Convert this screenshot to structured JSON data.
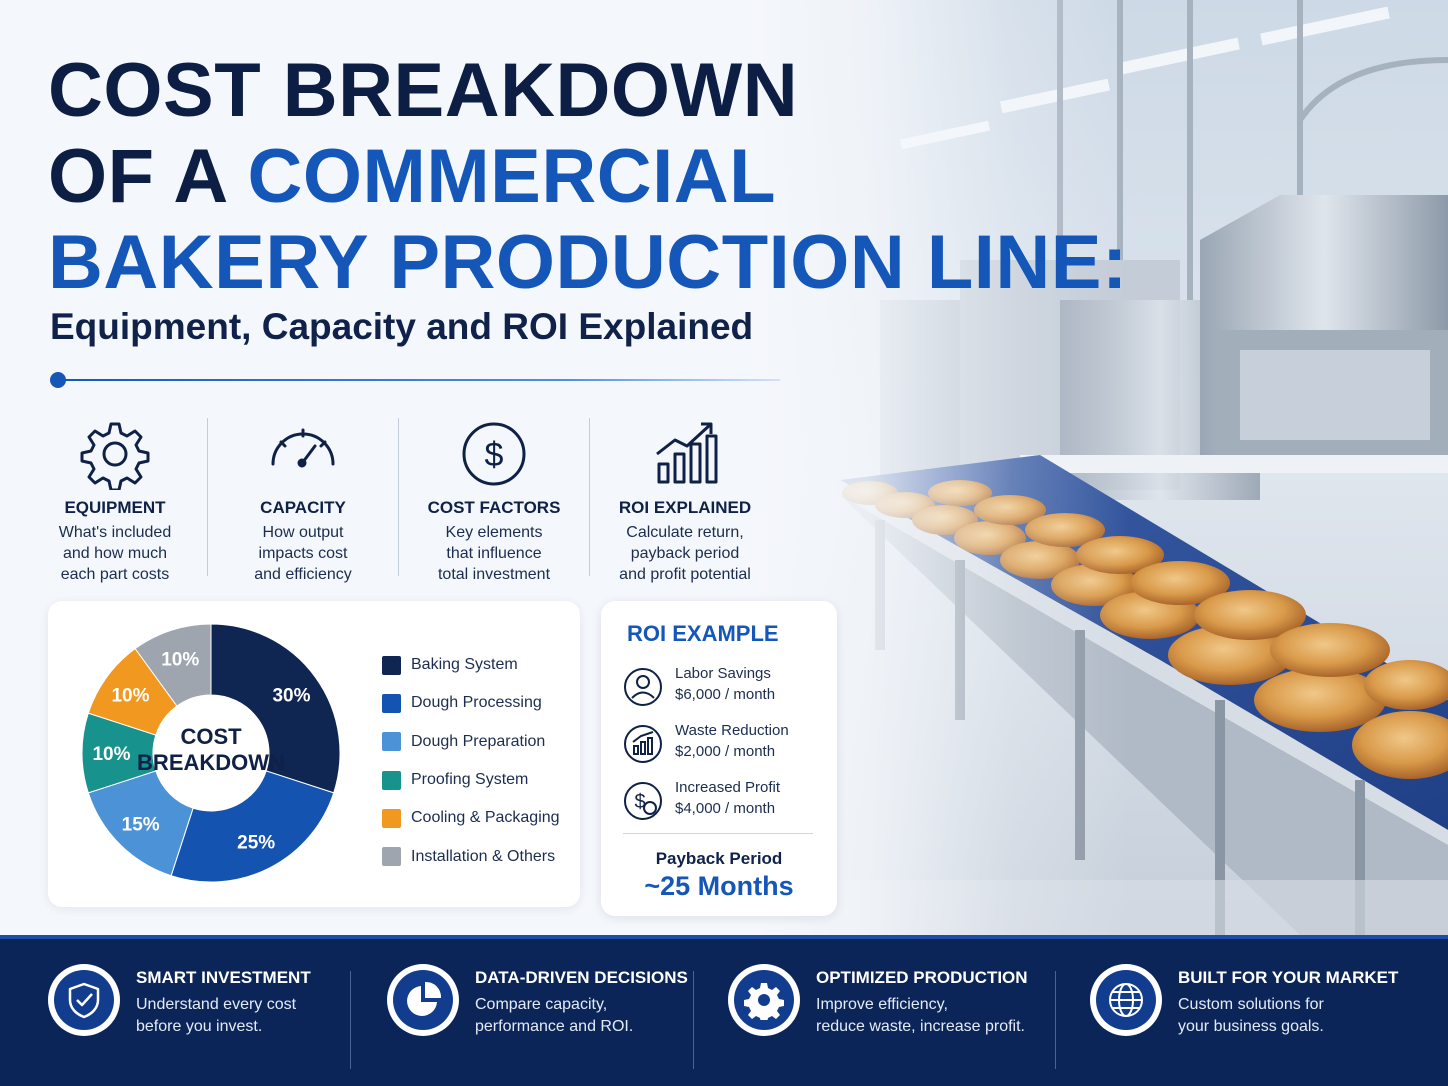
{
  "title": {
    "line1": "COST BREAKDOWN",
    "line2_dark": "OF A ",
    "line2_blue": "COMMERCIAL",
    "line3": "BAKERY PRODUCTION LINE:",
    "subtitle": "Equipment, Capacity and ROI Explained"
  },
  "features": [
    {
      "icon": "gear-icon",
      "heading": "EQUIPMENT",
      "lines": [
        "What's included",
        "and how much",
        "each part costs"
      ]
    },
    {
      "icon": "gauge-icon",
      "heading": "CAPACITY",
      "lines": [
        "How output",
        "impacts cost",
        "and efficiency"
      ]
    },
    {
      "icon": "dollar-circle-icon",
      "heading": "COST FACTORS",
      "lines": [
        "Key elements",
        "that influence",
        "total investment"
      ]
    },
    {
      "icon": "growth-chart-icon",
      "heading": "ROI EXPLAINED",
      "lines": [
        "Calculate return,",
        "payback period",
        "and profit potential"
      ]
    }
  ],
  "chart_data": {
    "type": "pie",
    "center_label": [
      "COST",
      "BREAKDOWN"
    ],
    "categories": [
      "Baking System",
      "Dough Processing",
      "Dough Preparation",
      "Proofing System",
      "Cooling & Packaging",
      "Installation & Others"
    ],
    "values": [
      30,
      25,
      15,
      10,
      10,
      10
    ],
    "labels": [
      "30%",
      "25%",
      "15%",
      "10%",
      "10%",
      "10%"
    ],
    "colors": [
      "#0f2552",
      "#1553b0",
      "#4b93d6",
      "#17928c",
      "#f0981f",
      "#9ea5af"
    ],
    "legend_position": "right"
  },
  "roi": {
    "title": "ROI EXAMPLE",
    "items": [
      {
        "icon": "person-icon",
        "label": "Labor Savings",
        "value": "$6,000 / month"
      },
      {
        "icon": "waste-chart-icon",
        "label": "Waste Reduction",
        "value": "$2,000 / month"
      },
      {
        "icon": "money-icon",
        "label": "Increased Profit",
        "value": "$4,000 / month"
      }
    ],
    "payback_label": "Payback Period",
    "payback_value": "~25 Months"
  },
  "footer": [
    {
      "icon": "shield-check-icon",
      "heading": "SMART INVESTMENT",
      "lines": [
        "Understand every cost",
        "before you invest."
      ]
    },
    {
      "icon": "pie-chart-icon",
      "heading": "DATA-DRIVEN DECISIONS",
      "lines": [
        "Compare capacity,",
        "performance and ROI."
      ]
    },
    {
      "icon": "gear-icon",
      "heading": "OPTIMIZED PRODUCTION",
      "lines": [
        "Improve efficiency,",
        "reduce waste, increase profit."
      ]
    },
    {
      "icon": "globe-icon",
      "heading": "BUILT FOR YOUR MARKET",
      "lines": [
        "Custom solutions for",
        "your business goals."
      ]
    }
  ]
}
